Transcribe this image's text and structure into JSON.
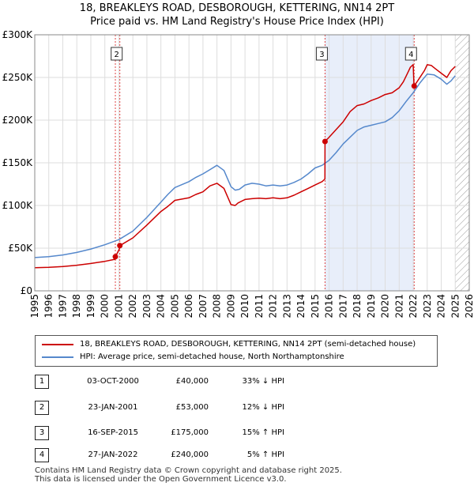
{
  "title_line1": "18, BREAKLEYS ROAD, DESBOROUGH, KETTERING, NN14 2PT",
  "title_line2": "Price paid vs. HM Land Registry's House Price Index (HPI)",
  "chart_data": {
    "type": "line",
    "xlim": [
      1995,
      2026
    ],
    "ylim": [
      0,
      300000
    ],
    "x_ticks": [
      1995,
      1996,
      1997,
      1998,
      1999,
      2000,
      2001,
      2002,
      2003,
      2004,
      2005,
      2006,
      2007,
      2008,
      2009,
      2010,
      2011,
      2012,
      2013,
      2014,
      2015,
      2016,
      2017,
      2018,
      2019,
      2020,
      2021,
      2022,
      2023,
      2024,
      2025,
      2026
    ],
    "y_ticks": [
      {
        "value": 0,
        "label": "£0"
      },
      {
        "value": 50000,
        "label": "£50K"
      },
      {
        "value": 100000,
        "label": "£100K"
      },
      {
        "value": 150000,
        "label": "£150K"
      },
      {
        "value": 200000,
        "label": "£200K"
      },
      {
        "value": 250000,
        "label": "£250K"
      },
      {
        "value": 300000,
        "label": "£300K"
      }
    ],
    "data_end_year": 2025.0,
    "shaded_period": [
      2015.71,
      2022.07
    ],
    "series": [
      {
        "name": "18, BREAKLEYS ROAD, DESBOROUGH, KETTERING, NN14 2PT (semi-detached house)",
        "color": "#cc0000",
        "x": [
          1995.0,
          1996.0,
          1997.0,
          1998.0,
          1999.0,
          2000.0,
          2000.75,
          2000.76,
          2001.06,
          2001.07,
          2002.0,
          2003.0,
          2004.0,
          2004.5,
          2005.0,
          2006.0,
          2006.5,
          2007.0,
          2007.5,
          2008.0,
          2008.5,
          2009.0,
          2009.3,
          2009.5,
          2010.0,
          2010.5,
          2011.0,
          2011.5,
          2012.0,
          2012.5,
          2013.0,
          2013.5,
          2014.0,
          2014.5,
          2015.0,
          2015.5,
          2015.7,
          2015.71,
          2016.0,
          2016.5,
          2017.0,
          2017.5,
          2018.0,
          2018.5,
          2019.0,
          2019.5,
          2020.0,
          2020.5,
          2021.0,
          2021.3,
          2021.6,
          2021.8,
          2022.0,
          2022.06,
          2022.07,
          2022.4,
          2022.8,
          2023.0,
          2023.3,
          2023.6,
          2024.0,
          2024.4,
          2024.7,
          2025.0
        ],
        "y": [
          27000,
          27500,
          28500,
          30000,
          32000,
          34500,
          37000,
          40000,
          50000,
          53000,
          62000,
          77000,
          93000,
          99000,
          106000,
          109000,
          113000,
          116000,
          123000,
          126000,
          120000,
          101000,
          100000,
          103000,
          107000,
          108000,
          108500,
          108000,
          109000,
          108000,
          109000,
          112000,
          116000,
          120000,
          124000,
          128000,
          131000,
          175000,
          180000,
          189000,
          198000,
          210000,
          217000,
          219000,
          223000,
          226000,
          230000,
          232000,
          238000,
          245000,
          255000,
          262000,
          265000,
          240000,
          240000,
          248000,
          258000,
          265000,
          264000,
          260000,
          255000,
          250000,
          258000,
          263000
        ]
      },
      {
        "name": "HPI: Average price, semi-detached house, North Northamptonshire",
        "color": "#5588cc",
        "x": [
          1995.0,
          1996.0,
          1997.0,
          1998.0,
          1999.0,
          2000.0,
          2001.0,
          2002.0,
          2003.0,
          2004.0,
          2004.5,
          2005.0,
          2006.0,
          2006.5,
          2007.0,
          2007.5,
          2008.0,
          2008.5,
          2009.0,
          2009.3,
          2009.6,
          2010.0,
          2010.5,
          2011.0,
          2011.5,
          2012.0,
          2012.5,
          2013.0,
          2013.5,
          2014.0,
          2014.5,
          2015.0,
          2015.5,
          2016.0,
          2016.5,
          2017.0,
          2017.5,
          2018.0,
          2018.5,
          2019.0,
          2019.5,
          2020.0,
          2020.5,
          2021.0,
          2021.5,
          2022.0,
          2022.5,
          2023.0,
          2023.5,
          2024.0,
          2024.4,
          2024.7,
          2025.0
        ],
        "y": [
          39000,
          40000,
          42000,
          45000,
          49000,
          54000,
          60000,
          70000,
          86000,
          104000,
          113000,
          121000,
          128000,
          133000,
          137000,
          142000,
          147000,
          141000,
          122000,
          118000,
          119000,
          124000,
          126000,
          125000,
          123000,
          124000,
          123000,
          124000,
          127000,
          131000,
          137000,
          144000,
          147000,
          153000,
          162000,
          172000,
          180000,
          188000,
          192000,
          194000,
          196000,
          198000,
          203000,
          211000,
          222000,
          232000,
          244000,
          254000,
          253000,
          248000,
          242000,
          246000,
          252000
        ]
      }
    ],
    "sale_markers": [
      {
        "id": "1",
        "x": 2000.75,
        "y": 40000
      },
      {
        "id": "2",
        "x": 2001.07,
        "y": 53000
      },
      {
        "id": "3",
        "x": 2015.71,
        "y": 175000
      },
      {
        "id": "4",
        "x": 2022.07,
        "y": 240000
      }
    ],
    "marker_labels": [
      {
        "id": "2",
        "x": 2001.07
      },
      {
        "id": "3",
        "x": 2015.71
      },
      {
        "id": "4",
        "x": 2022.07
      }
    ]
  },
  "legend": {
    "property_label": "18, BREAKLEYS ROAD, DESBOROUGH, KETTERING, NN14 2PT (semi-detached house)",
    "hpi_label": "HPI: Average price, semi-detached house, North Northamptonshire"
  },
  "transactions": [
    {
      "num": "1",
      "date": "03-OCT-2000",
      "price": "£40,000",
      "hpi": "33% ↓ HPI"
    },
    {
      "num": "2",
      "date": "23-JAN-2001",
      "price": "£53,000",
      "hpi": "12% ↓ HPI"
    },
    {
      "num": "3",
      "date": "16-SEP-2015",
      "price": "£175,000",
      "hpi": "15% ↑ HPI"
    },
    {
      "num": "4",
      "date": "27-JAN-2022",
      "price": "£240,000",
      "hpi": "5% ↑ HPI"
    }
  ],
  "footer": {
    "line1": "Contains HM Land Registry data © Crown copyright and database right 2025.",
    "line2": "This data is licensed under the Open Government Licence v3.0."
  },
  "colors": {
    "property_line": "#cc0000",
    "hpi_line": "#5588cc",
    "shade": "#e8eefa",
    "hatch": "#999999"
  }
}
